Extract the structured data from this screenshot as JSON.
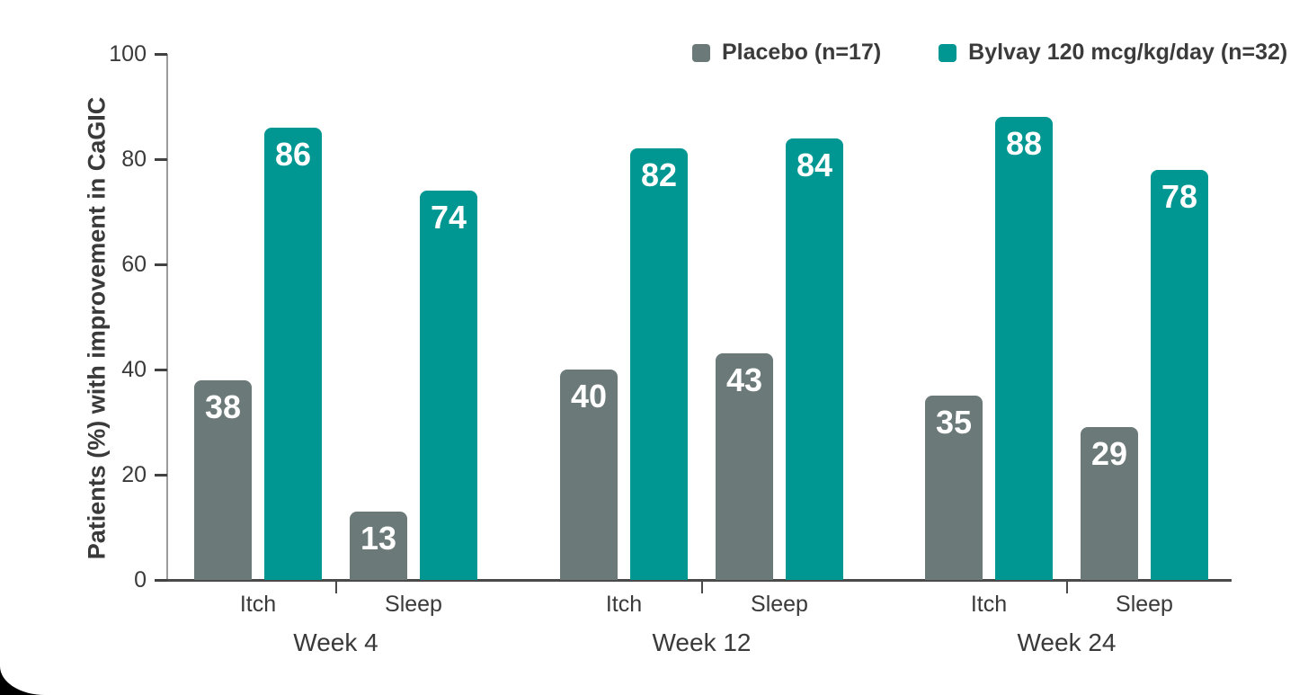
{
  "figure": {
    "card_background": "#ffffff",
    "page_background_behind_corner": "#000000"
  },
  "colors": {
    "placebo": "#6B7978",
    "bylvay": "#009691",
    "axis_text": "#3a3a3a",
    "bar_value_text": "#ffffff"
  },
  "legend": {
    "items": [
      {
        "label": "Placebo (n=17)",
        "color": "#6B7978"
      },
      {
        "label": "Bylvay 120 mcg/kg/day (n=32)",
        "color": "#009691"
      }
    ]
  },
  "chart_data": {
    "type": "bar",
    "title": "",
    "ylabel": "Patients (%) with improvement in CaGIC",
    "xlabel": "",
    "ylim": [
      0,
      100
    ],
    "yticks": [
      0,
      20,
      40,
      60,
      80,
      100
    ],
    "grid": false,
    "legend_position": "top-right",
    "bar_value_labels": true,
    "group_labels": [
      "Week 4",
      "Week 12",
      "Week 24"
    ],
    "categories_per_group": [
      "Itch",
      "Sleep"
    ],
    "categories_flat": [
      "Itch",
      "Sleep",
      "Itch",
      "Sleep",
      "Itch",
      "Sleep"
    ],
    "series": [
      {
        "name": "Placebo (n=17)",
        "color": "#6B7978",
        "values": [
          38,
          13,
          40,
          43,
          35,
          29
        ]
      },
      {
        "name": "Bylvay 120 mcg/kg/day (n=32)",
        "color": "#009691",
        "values": [
          86,
          74,
          82,
          84,
          88,
          78
        ]
      }
    ]
  }
}
